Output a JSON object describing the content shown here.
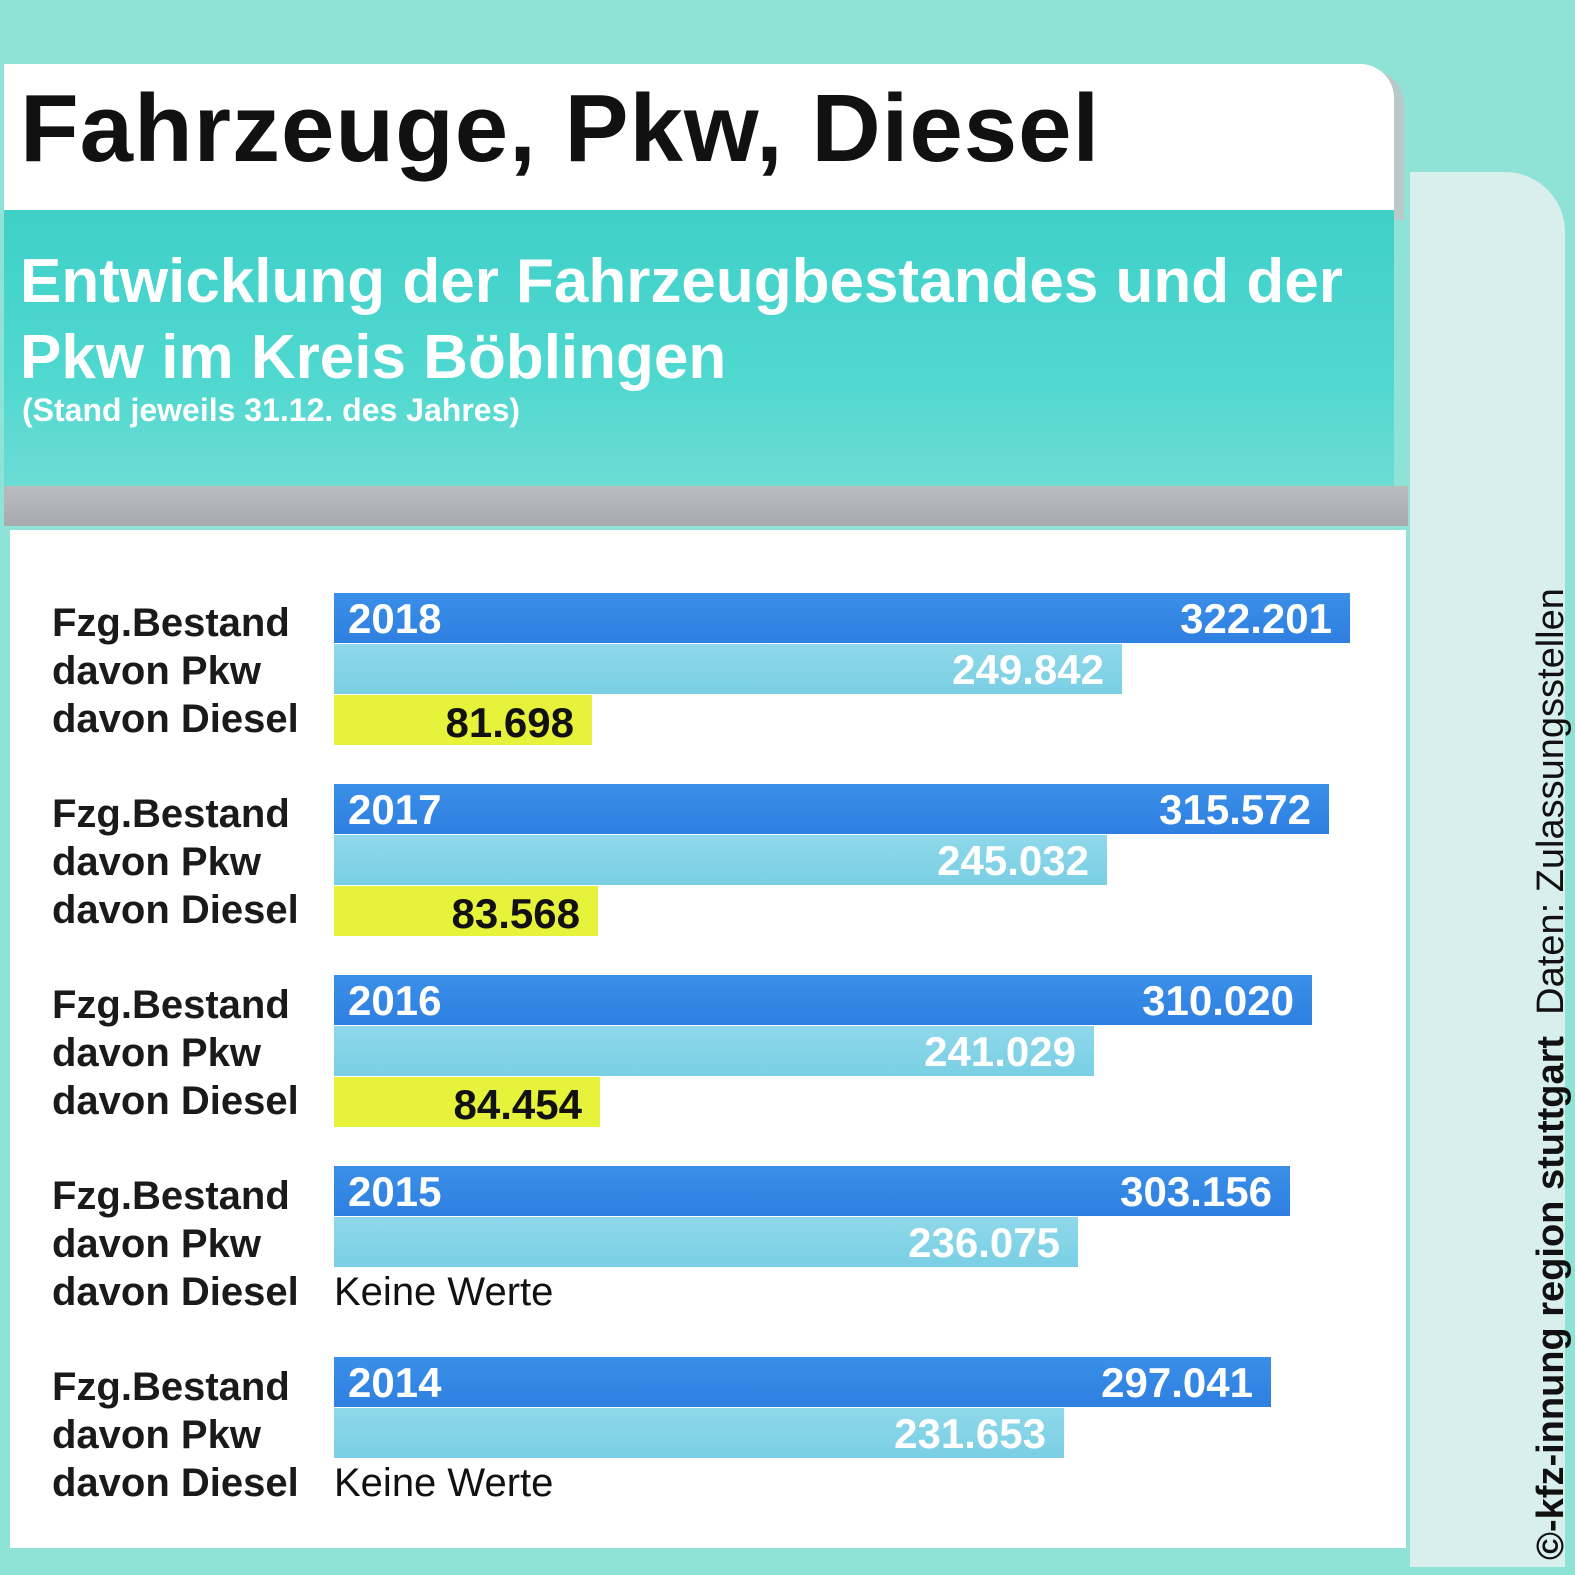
{
  "header": {
    "title": "Fahrzeuge, Pkw, Diesel",
    "subtitle": "Entwicklung der Fahrzeugbestandes und der Pkw im Kreis Böblingen",
    "note": "(Stand jeweils 31.12. des Jahres)"
  },
  "credit": {
    "source": "©-kfz-innung region stuttgart",
    "data": "Daten: Zulassungsstellen"
  },
  "labels": {
    "total": "Fzg.Bestand",
    "pkw": "davon Pkw",
    "diesel": "davon Diesel",
    "no_values": "Keine Werte"
  },
  "colors": {
    "total": "#2f7fe0",
    "pkw": "#7acfe4",
    "diesel": "#e6f33a",
    "title_band": "#4fd8d0"
  },
  "chart_data": {
    "type": "bar",
    "orientation": "horizontal",
    "categories": [
      "2018",
      "2017",
      "2016",
      "2015",
      "2014"
    ],
    "series": [
      {
        "name": "Fzg.Bestand",
        "values": [
          322201,
          315572,
          310020,
          303156,
          297041
        ],
        "labels": [
          "322.201",
          "315.572",
          "310.020",
          "303.156",
          "297.041"
        ]
      },
      {
        "name": "davon Pkw",
        "values": [
          249842,
          245032,
          241029,
          236075,
          231653
        ],
        "labels": [
          "249.842",
          "245.032",
          "241.029",
          "236.075",
          "231.653"
        ]
      },
      {
        "name": "davon Diesel",
        "values": [
          81698,
          83568,
          84454,
          null,
          null
        ],
        "labels": [
          "81.698",
          "83.568",
          "84.454",
          "Keine Werte",
          "Keine Werte"
        ]
      }
    ],
    "xlim": [
      0,
      322201
    ],
    "grid": false
  }
}
